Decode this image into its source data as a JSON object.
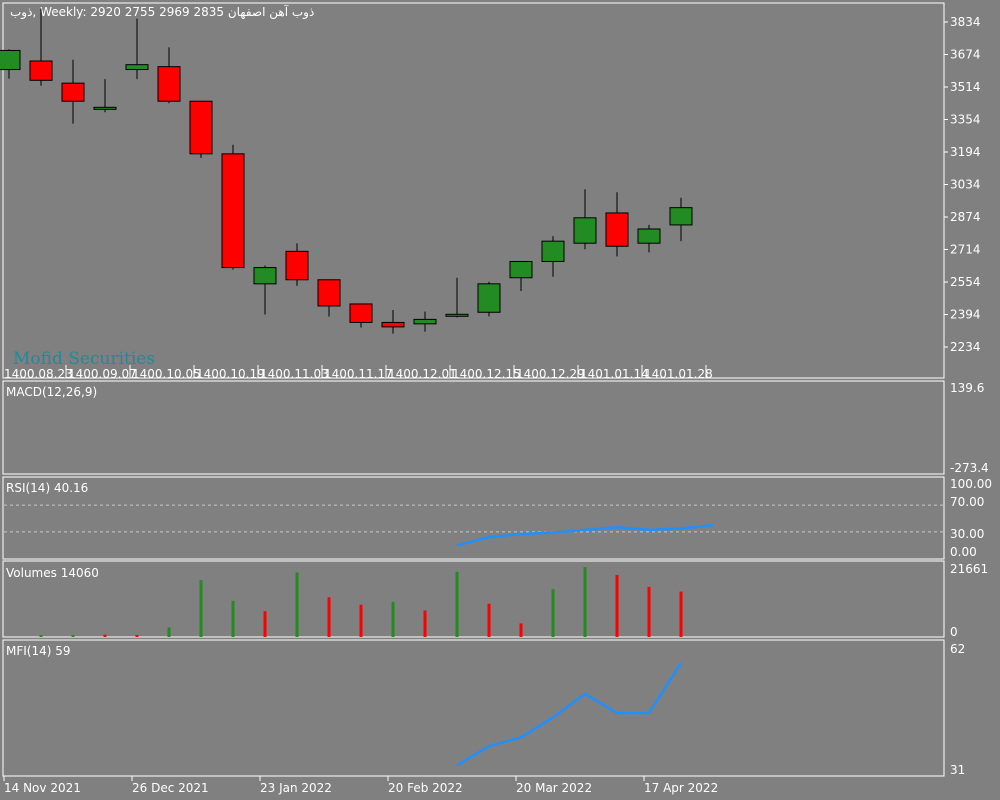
{
  "header": {
    "symbol": "ذوب",
    "timeframe": "Weekly:",
    "ohlc": "2920 2755 2969 2835",
    "name": "ذوب آهن اصفهان"
  },
  "watermark": "Mofid Securities",
  "colors": {
    "background": "#808080",
    "bull": "#228b22",
    "bear": "#ff0000",
    "indicator_line": "#1e90ff",
    "outline": "#000000",
    "text": "#ffffff"
  },
  "price_axis_ticks": [
    "3834",
    "3674",
    "3514",
    "3354",
    "3194",
    "3034",
    "2874",
    "2714",
    "2554",
    "2394",
    "2234"
  ],
  "jalali_date_labels": [
    "1400.08.23",
    "1400.09.07",
    "1400.10.05",
    "1400.10.19",
    "1400.11.03",
    "1400.11.17",
    "1400.12.01",
    "1400.12.15",
    "1400.12.29",
    "1401.01.14",
    "1401.01.28"
  ],
  "gregorian_date_labels": [
    "14 Nov 2021",
    "26 Dec 2021",
    "23 Jan 2022",
    "20 Feb 2022",
    "20 Mar 2022",
    "17 Apr 2022"
  ],
  "panels": {
    "macd": {
      "label": "MACD(12,26,9)",
      "ticks": [
        "139.6",
        "-273.4"
      ]
    },
    "rsi": {
      "label": "RSI(14) 40.16",
      "ticks": [
        "100.00",
        "70.00",
        "30.00",
        "0.00"
      ],
      "levels": [
        70,
        30
      ]
    },
    "volumes": {
      "label": "Volumes 14060",
      "ticks": [
        "21661",
        "0"
      ]
    },
    "mfi": {
      "label": "MFI(14) 59",
      "ticks": [
        "62",
        "31"
      ]
    }
  },
  "chart_data": [
    {
      "type": "candlestick",
      "title": "ذوب, Weekly",
      "ylim": [
        2234,
        3834
      ],
      "candles": [
        {
          "o": 3600,
          "h": 3700,
          "l": 3555,
          "c": 3694
        },
        {
          "o": 3642,
          "h": 3900,
          "l": 3520,
          "c": 3547
        },
        {
          "o": 3533,
          "h": 3648,
          "l": 3334,
          "c": 3444
        },
        {
          "o": 3404,
          "h": 3553,
          "l": 3390,
          "c": 3414
        },
        {
          "o": 3600,
          "h": 3850,
          "l": 3553,
          "c": 3624
        },
        {
          "o": 3614,
          "h": 3709,
          "l": 3434,
          "c": 3444
        },
        {
          "o": 3444,
          "h": 3440,
          "l": 3165,
          "c": 3185
        },
        {
          "o": 3185,
          "h": 3230,
          "l": 2615,
          "c": 2625
        },
        {
          "o": 2545,
          "h": 2635,
          "l": 2394,
          "c": 2625
        },
        {
          "o": 2705,
          "h": 2744,
          "l": 2535,
          "c": 2565
        },
        {
          "o": 2565,
          "h": 2565,
          "l": 2384,
          "c": 2436
        },
        {
          "o": 2446,
          "h": 2446,
          "l": 2330,
          "c": 2355
        },
        {
          "o": 2355,
          "h": 2416,
          "l": 2300,
          "c": 2333
        },
        {
          "o": 2348,
          "h": 2408,
          "l": 2310,
          "c": 2370
        },
        {
          "o": 2390,
          "h": 2575,
          "l": 2380,
          "c": 2395
        },
        {
          "o": 2405,
          "h": 2555,
          "l": 2385,
          "c": 2545
        },
        {
          "o": 2575,
          "h": 2640,
          "l": 2510,
          "c": 2655
        },
        {
          "o": 2655,
          "h": 2780,
          "l": 2580,
          "c": 2755
        },
        {
          "o": 2745,
          "h": 3010,
          "l": 2715,
          "c": 2870
        },
        {
          "o": 2894,
          "h": 2996,
          "l": 2680,
          "c": 2730
        },
        {
          "o": 2745,
          "h": 2835,
          "l": 2700,
          "c": 2815
        },
        {
          "o": 2835,
          "h": 2969,
          "l": 2755,
          "c": 2920
        }
      ]
    },
    {
      "type": "line",
      "title": "RSI(14)",
      "ylim": [
        0,
        100
      ],
      "x_index_start": 14,
      "values": [
        10,
        22,
        27,
        29,
        33,
        37,
        33,
        35,
        40.16
      ]
    },
    {
      "type": "bar",
      "title": "Volumes",
      "ylim": [
        0,
        21661
      ],
      "values": [
        620,
        660,
        720,
        640,
        2950,
        17600,
        11200,
        8000,
        20000,
        12300,
        10000,
        10900,
        8200,
        20200,
        10300,
        4200,
        14800,
        21661,
        19200,
        15500,
        14060
      ],
      "colors": [
        "bull",
        "bull",
        "bear",
        "bear",
        "bull",
        "bull",
        "bull",
        "bear",
        "bull",
        "bear",
        "bear",
        "bull",
        "bear",
        "bull",
        "bear",
        "bear",
        "bull",
        "bull",
        "bear",
        "bear",
        "bear"
      ]
    },
    {
      "type": "line",
      "title": "MFI(14)",
      "ylim": [
        31,
        62
      ],
      "x_index_start": 14,
      "values": [
        31.2,
        36.4,
        38.8,
        44.2,
        50.6,
        45.4,
        45.4,
        59
      ]
    }
  ]
}
